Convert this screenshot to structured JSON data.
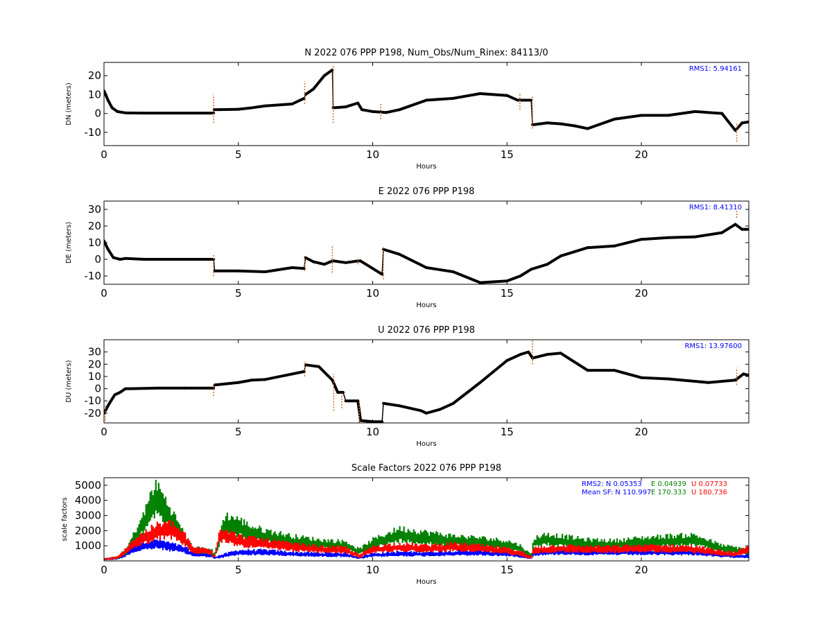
{
  "chart_data": [
    {
      "type": "scatter",
      "title": "N 2022 076 PPP  P198, Num_Obs/Num_Rinex: 84113/0",
      "xlabel": "Hours",
      "ylabel": "DN (meters)",
      "xlim": [
        0,
        24
      ],
      "ylim": [
        -17,
        27
      ],
      "xticks": [
        0,
        5,
        10,
        15,
        20
      ],
      "yticks": [
        -10,
        0,
        10,
        20
      ],
      "grid": false,
      "annotation": "RMS1:  5.94161",
      "annotation_color": "#0000ff",
      "series": [
        {
          "color": "#000000",
          "x": [
            0,
            0.15,
            0.3,
            0.5,
            0.8,
            1.5,
            2.5,
            3.5,
            4.08,
            4.1,
            4.3,
            5,
            5.5,
            6,
            7,
            7.45,
            7.5,
            7.8,
            8.2,
            8.5,
            8.53,
            9,
            9.45,
            9.6,
            10,
            10.5,
            11,
            12,
            13,
            14,
            15,
            15.4,
            15.9,
            15.95,
            16.5,
            17,
            17.5,
            18,
            19,
            20,
            21,
            22,
            23,
            23.5,
            23.75,
            24
          ],
          "y": [
            12,
            7,
            3,
            1,
            0.3,
            0.2,
            0.2,
            0.2,
            0.2,
            2,
            2,
            2.2,
            3,
            4,
            5,
            8,
            10,
            13,
            20,
            23,
            3,
            3.5,
            5.5,
            2,
            1,
            0.5,
            2,
            7,
            8,
            10.5,
            9.5,
            7,
            7,
            -6,
            -5,
            -5.5,
            -6.5,
            -8,
            -3,
            -1,
            -1,
            1,
            0,
            -9,
            -5,
            -4.5
          ]
        }
      ],
      "outliers": {
        "color": "#d2691e",
        "x": [
          4.08,
          7.47,
          8.53,
          10.3,
          15.48,
          15.95,
          23.55
        ],
        "ymin": [
          -5,
          5,
          -5,
          -3,
          2,
          -8,
          -15
        ],
        "ymax": [
          10,
          17,
          26,
          5,
          11,
          9,
          -5
        ]
      }
    },
    {
      "type": "scatter",
      "title": "E 2022 076 PPP  P198",
      "xlabel": "Hours",
      "ylabel": "DE (meters)",
      "xlim": [
        0,
        24
      ],
      "ylim": [
        -15,
        35
      ],
      "xticks": [
        0,
        5,
        10,
        15,
        20
      ],
      "yticks": [
        -10,
        0,
        10,
        20,
        30
      ],
      "grid": false,
      "annotation": "RMS1:  8.41310",
      "annotation_color": "#0000ff",
      "series": [
        {
          "color": "#000000",
          "x": [
            0,
            0.15,
            0.35,
            0.6,
            0.8,
            1.5,
            3,
            4.08,
            4.12,
            5,
            6,
            7,
            7.45,
            7.5,
            7.8,
            8.2,
            8.5,
            8.55,
            9,
            9.45,
            9.55,
            10.35,
            10.4,
            11,
            12,
            13,
            14,
            15,
            15.5,
            15.9,
            16.5,
            17,
            18,
            19,
            20,
            21,
            22,
            23,
            23.5,
            23.75,
            24
          ],
          "y": [
            11,
            6,
            1,
            0,
            0.5,
            0,
            0,
            0,
            -7,
            -7,
            -7.5,
            -5,
            -5.5,
            1,
            -1.5,
            -3,
            -1,
            -1,
            -2,
            -1,
            -1,
            -9,
            6,
            3,
            -5,
            -7.5,
            -14,
            -13,
            -10,
            -6,
            -3,
            2,
            7,
            8,
            12,
            13,
            13.5,
            16,
            21,
            18,
            18
          ]
        }
      ],
      "outliers": {
        "color": "#d2691e",
        "x": [
          4.08,
          7.47,
          8.5,
          9.45,
          10.4,
          23.55
        ],
        "ymin": [
          -10,
          -7,
          -8,
          -3,
          -12,
          25
        ],
        "ymax": [
          3,
          2,
          8,
          0,
          8,
          30
        ]
      }
    },
    {
      "type": "scatter",
      "title": "U 2022 076 PPP  P198",
      "xlabel": "Hours",
      "ylabel": "DU (meters)",
      "xlim": [
        0,
        24
      ],
      "ylim": [
        -28,
        40
      ],
      "xticks": [
        0,
        5,
        10,
        15,
        20
      ],
      "yticks": [
        -20,
        -10,
        0,
        10,
        20,
        30
      ],
      "grid": false,
      "annotation": "RMS1: 13.97600",
      "annotation_color": "#0000ff",
      "series": [
        {
          "color": "#000000",
          "x": [
            0,
            0.2,
            0.4,
            0.6,
            0.8,
            1,
            2,
            3,
            4.08,
            4.12,
            5,
            5.5,
            6,
            7,
            7.45,
            7.5,
            8,
            8.5,
            8.7,
            8.9,
            9,
            9.45,
            9.55,
            10,
            10.35,
            10.4,
            11,
            11.8,
            12,
            12.5,
            13,
            14,
            15,
            15.5,
            15.8,
            15.95,
            16.5,
            17,
            17.5,
            18,
            19,
            20,
            21,
            22,
            22.5,
            23.5,
            23.8,
            24
          ],
          "y": [
            -20,
            -12,
            -5,
            -3,
            0,
            0,
            0.5,
            0.5,
            0.5,
            3,
            5,
            7,
            7.5,
            12,
            14,
            19.5,
            18,
            7,
            -3,
            -3,
            -10,
            -10,
            -26,
            -27,
            -27,
            -12,
            -14,
            -18,
            -20,
            -17,
            -12,
            5,
            23,
            28,
            30,
            25,
            28,
            29,
            22,
            15,
            15,
            9,
            8,
            6,
            5,
            7,
            12,
            11
          ]
        }
      ],
      "outliers": {
        "color": "#d2691e",
        "x": [
          0.05,
          4.08,
          7.47,
          8.55,
          8.85,
          9.5,
          15.95,
          23.55
        ],
        "ymin": [
          -26,
          -6,
          10,
          -18,
          -16,
          -28,
          20,
          3
        ],
        "ymax": [
          -14,
          4,
          22,
          12,
          -3,
          -10,
          40,
          17
        ]
      }
    },
    {
      "type": "scatter",
      "title": "Scale Factors 2022 076 PPP  P198",
      "xlabel": "Hours",
      "ylabel": "scale factors",
      "xlim": [
        0,
        24
      ],
      "ylim": [
        0,
        5500
      ],
      "xticks": [
        0,
        5,
        10,
        15,
        20
      ],
      "yticks": [
        1000,
        2000,
        3000,
        4000,
        5000
      ],
      "grid": false,
      "rms2": {
        "prefix": "RMS2: N",
        "N": "0.05353",
        "E": "0.04939",
        "U": "0.07733"
      },
      "mean_sf": {
        "prefix": "Mean SF: N",
        "N": "110.997",
        "E": "170.333",
        "U": "180.736"
      },
      "series": [
        {
          "name": "N",
          "color": "#0000ff",
          "x": [
            0,
            0.5,
            0.8,
            1,
            1.5,
            2,
            2.5,
            3,
            3.3,
            4,
            4.1,
            4.5,
            5,
            6,
            7,
            8,
            9,
            9.5,
            10,
            11,
            12,
            13,
            14,
            15,
            15.5,
            15.9,
            16,
            17,
            18,
            19,
            20,
            21,
            22,
            23,
            24
          ],
          "y": [
            100,
            150,
            400,
            700,
            1000,
            1100,
            900,
            700,
            450,
            350,
            200,
            350,
            550,
            550,
            450,
            400,
            400,
            200,
            380,
            450,
            450,
            500,
            520,
            450,
            350,
            200,
            500,
            600,
            550,
            550,
            550,
            550,
            550,
            350,
            300
          ]
        },
        {
          "name": "E",
          "color": "#008000",
          "x": [
            0,
            0.5,
            0.8,
            1,
            1.5,
            1.8,
            2,
            2.3,
            2.7,
            3,
            3.3,
            4,
            4.1,
            4.5,
            5,
            5.5,
            6,
            7,
            8,
            9,
            9.5,
            10,
            11,
            12,
            13,
            14,
            15,
            15.5,
            15.9,
            16,
            16.5,
            17,
            18,
            19,
            20,
            21,
            22,
            23,
            24
          ],
          "y": [
            100,
            200,
            500,
            1100,
            2500,
            3800,
            4000,
            3200,
            2200,
            1400,
            700,
            600,
            300,
            2400,
            2200,
            1800,
            1600,
            1300,
            1100,
            1000,
            600,
            1100,
            1700,
            1500,
            1300,
            1200,
            1050,
            800,
            300,
            1200,
            1400,
            1300,
            1100,
            1050,
            1200,
            1300,
            1350,
            800,
            600
          ]
        },
        {
          "name": "U",
          "color": "#ff0000",
          "x": [
            0,
            0.5,
            0.8,
            1,
            1.5,
            2,
            2.5,
            3,
            3.3,
            4,
            4.1,
            4.3,
            4.5,
            5,
            6,
            7,
            8,
            9,
            9.5,
            10,
            11,
            12,
            13,
            14,
            15,
            15.5,
            15.9,
            16,
            17,
            18,
            19,
            20,
            21,
            22,
            23,
            23.5,
            24
          ],
          "y": [
            100,
            200,
            600,
            1000,
            1500,
            1900,
            2000,
            1400,
            700,
            600,
            200,
            1600,
            1700,
            1300,
            1100,
            900,
            750,
            700,
            300,
            750,
            900,
            800,
            900,
            800,
            650,
            500,
            200,
            700,
            800,
            750,
            750,
            800,
            800,
            750,
            500,
            450,
            700
          ]
        }
      ]
    }
  ]
}
